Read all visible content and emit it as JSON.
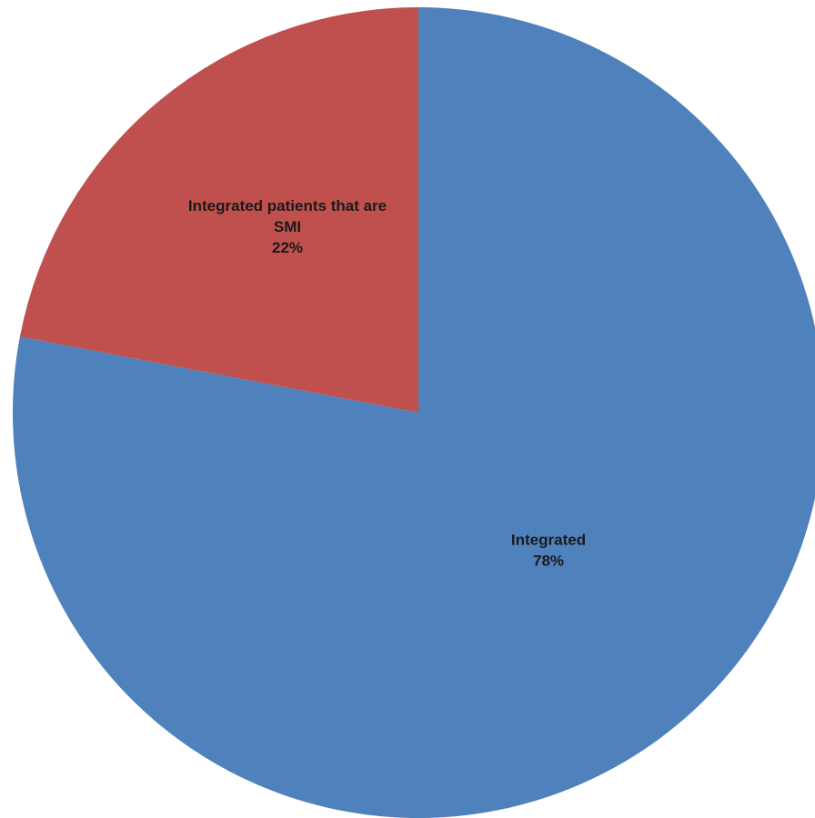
{
  "chart_data": {
    "type": "pie",
    "slices": [
      {
        "label": "Integrated",
        "value": 78,
        "display": "78%",
        "color": "#4F81BD"
      },
      {
        "label": "Integrated patients that are SMI",
        "value": 22,
        "display": "22%",
        "color": "#C0504D"
      }
    ],
    "start": "12 o'clock",
    "direction": "clockwise",
    "title": "",
    "legend": "none"
  }
}
